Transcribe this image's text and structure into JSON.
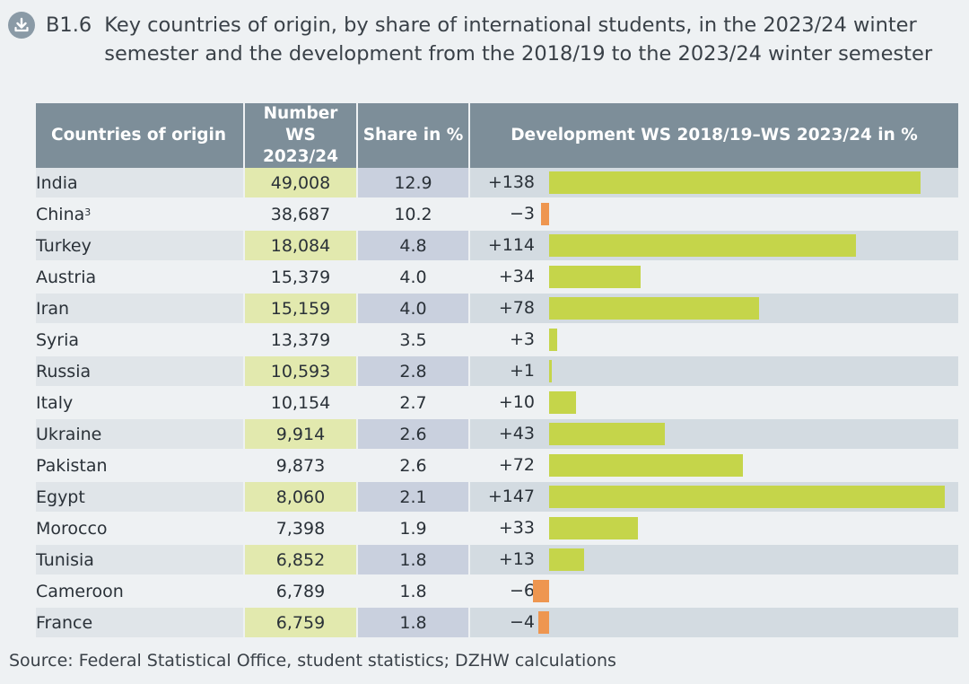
{
  "figure": {
    "number": "B1.6",
    "title": "Key countries of origin, by share of international students, in the 2023/24 winter semester and the development from the 2018/19 to the 2023/24 winter semester"
  },
  "table": {
    "headers": {
      "country": "Countries of origin",
      "number_line1": "Number",
      "number_line2": "WS 2023/24",
      "share": "Share in %",
      "development": "Development WS 2018/19–WS 2023/24 in %"
    }
  },
  "colors": {
    "positive_bar": "#c5d54a",
    "negative_bar": "#ee9650",
    "header_bg": "#7d8e99"
  },
  "chart_data": {
    "type": "bar",
    "categories": [
      "India",
      "China",
      "Turkey",
      "Austria",
      "Iran",
      "Syria",
      "Russia",
      "Italy",
      "Ukraine",
      "Pakistan",
      "Egypt",
      "Morocco",
      "Tunisia",
      "Cameroon",
      "France"
    ],
    "footnotes": [
      "",
      "3",
      "",
      "",
      "",
      "",
      "",
      "",
      "",
      "",
      "",
      "",
      "",
      "",
      ""
    ],
    "number_labels": [
      "49,008",
      "38,687",
      "18,084",
      "15,379",
      "15,159",
      "13,379",
      "10,593",
      "10,154",
      "9,914",
      "9,873",
      "8,060",
      "7,398",
      "6,852",
      "6,789",
      "6,759"
    ],
    "share_labels": [
      "12.9",
      "10.2",
      "4.8",
      "4.0",
      "4.0",
      "3.5",
      "2.8",
      "2.7",
      "2.6",
      "2.6",
      "2.1",
      "1.9",
      "1.8",
      "1.8",
      "1.8"
    ],
    "development_labels": [
      "+138",
      "−3",
      "+114",
      "+34",
      "+78",
      "+3",
      "+1",
      "+10",
      "+43",
      "+72",
      "+147",
      "+33",
      "+13",
      "−6",
      "−4"
    ],
    "development_values": [
      138,
      -3,
      114,
      34,
      78,
      3,
      1,
      10,
      43,
      72,
      147,
      33,
      13,
      -6,
      -4
    ]
  },
  "source": "Source: Federal Statistical Office, student statistics; DZHW calculations"
}
